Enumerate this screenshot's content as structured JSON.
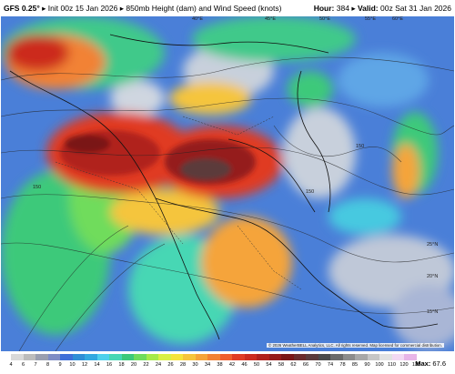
{
  "header": {
    "model": "GFS 0.25°",
    "init": "Init 00z 15 Jan 2026",
    "product": "850mb Height (dam) and Wind Speed (knots)",
    "hour_label": "Hour:",
    "hour_value": "384",
    "valid_label": "Valid:",
    "valid_value": "00z Sat 31 Jan 2026"
  },
  "map": {
    "latitude_labels": [
      "25°N",
      "20°N",
      "15°N"
    ],
    "longitude_labels": [
      "40°E",
      "45°E",
      "50°E",
      "55°E",
      "60°E"
    ],
    "contour_labels": [
      "150",
      "150",
      "150"
    ],
    "copyright": "© 2026 WeatherBELL Analytics, LLC. All rights reserved. Map licensed for commercial distribution."
  },
  "colorbar": {
    "ticks": [
      "4",
      "6",
      "7",
      "8",
      "9",
      "10",
      "12",
      "14",
      "16",
      "18",
      "20",
      "22",
      "24",
      "26",
      "28",
      "30",
      "34",
      "38",
      "42",
      "46",
      "50",
      "54",
      "58",
      "62",
      "66",
      "70",
      "74",
      "78",
      "85",
      "90",
      "100",
      "110",
      "120",
      "135"
    ],
    "colors": [
      "#d9d9d9",
      "#bcbcbc",
      "#9a9fb0",
      "#7f8dc5",
      "#3f6fd8",
      "#2f8ed6",
      "#33a9e0",
      "#4fd1ec",
      "#46d7b4",
      "#3cc97a",
      "#6fdc5c",
      "#a5ea4a",
      "#d9f046",
      "#f5e43c",
      "#f5c53c",
      "#f5a43a",
      "#f28234",
      "#ef5e2d",
      "#e03b24",
      "#cc2a1e",
      "#b0201c",
      "#951a1a",
      "#7a1616",
      "#6b2b2b",
      "#5b3b3b",
      "#4a4a4a",
      "#6b6b6b",
      "#8c8c8c",
      "#a8a8a8",
      "#c6c6c6",
      "#e2e2e2",
      "#f3d9f3",
      "#e8b5e8"
    ],
    "max_label": "Max:",
    "max_value": "67.6"
  }
}
